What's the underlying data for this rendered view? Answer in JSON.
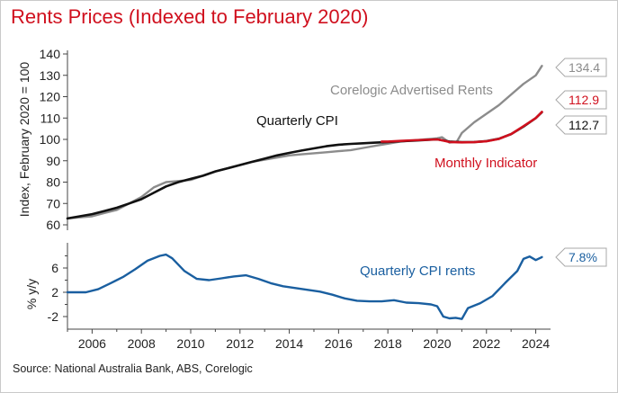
{
  "title": "Rents Prices (Indexed to February 2020)",
  "source": "Source: National Australia Bank, ABS, Corelogic",
  "chart_data": [
    {
      "type": "line",
      "ylabel": "Index, February 2020 = 100",
      "ylim": [
        60,
        140
      ],
      "yticks": [
        "60",
        "70",
        "80",
        "90",
        "100",
        "110",
        "120",
        "130",
        "140"
      ],
      "grid": false,
      "annotations": {
        "corelogic": "Corelogic Advertised Rents",
        "cpi": "Quarterly CPI",
        "monthly": "Monthly Indicator"
      },
      "end_labels": {
        "corelogic": "134.4",
        "monthly": "112.9",
        "cpi": "112.7"
      },
      "series": [
        {
          "key": "corelogic",
          "color": "#8c8c8c",
          "x": [
            2005.0,
            2005.5,
            2006.0,
            2006.5,
            2007.0,
            2007.5,
            2008.0,
            2008.5,
            2009.0,
            2009.5,
            2010.0,
            2010.5,
            2011.0,
            2011.5,
            2012.0,
            2012.5,
            2013.0,
            2013.5,
            2014.0,
            2014.5,
            2015.0,
            2015.5,
            2016.0,
            2016.5,
            2017.0,
            2017.5,
            2018.0,
            2018.5,
            2019.0,
            2019.5,
            2020.0,
            2020.2,
            2020.5,
            2020.8,
            2021.0,
            2021.5,
            2022.0,
            2022.5,
            2023.0,
            2023.5,
            2024.0,
            2024.25
          ],
          "y": [
            63,
            63.5,
            64,
            65.5,
            67,
            70,
            73,
            77.5,
            80,
            80.5,
            81,
            83,
            85,
            86.5,
            88,
            89.5,
            90.5,
            91.5,
            92.5,
            93,
            93.5,
            94,
            94.5,
            95,
            96,
            97,
            98,
            99,
            99.5,
            100,
            100.5,
            101,
            98.5,
            99,
            103,
            108,
            112,
            116,
            121,
            126,
            130,
            134.4
          ]
        },
        {
          "key": "cpi",
          "color": "#111111",
          "x": [
            2005.0,
            2005.5,
            2006.0,
            2006.5,
            2007.0,
            2007.5,
            2008.0,
            2008.5,
            2009.0,
            2009.5,
            2010.0,
            2010.5,
            2011.0,
            2011.5,
            2012.0,
            2012.5,
            2013.0,
            2013.5,
            2014.0,
            2014.5,
            2015.0,
            2015.5,
            2016.0,
            2016.5,
            2017.0,
            2017.5,
            2018.0,
            2018.5,
            2019.0,
            2019.5,
            2020.0,
            2020.5,
            2021.0,
            2021.5,
            2022.0,
            2022.5,
            2023.0,
            2023.5,
            2024.0,
            2024.25
          ],
          "y": [
            63,
            64,
            65,
            66.5,
            68,
            70,
            72,
            75,
            78,
            80,
            81.5,
            83,
            85,
            86.5,
            88,
            89.5,
            91,
            92.5,
            93.7,
            94.8,
            95.8,
            96.8,
            97.5,
            97.9,
            98.2,
            98.5,
            98.8,
            99.1,
            99.4,
            99.7,
            100,
            99,
            98.7,
            98.8,
            99.2,
            100.3,
            102.5,
            106,
            110,
            112.7
          ]
        },
        {
          "key": "monthly",
          "color": "#d0101e",
          "x": [
            2017.75,
            2018.0,
            2018.5,
            2019.0,
            2019.5,
            2020.0,
            2020.2,
            2020.5,
            2021.0,
            2021.5,
            2022.0,
            2022.5,
            2023.0,
            2023.5,
            2024.0,
            2024.25
          ],
          "y": [
            99,
            99,
            99.3,
            99.6,
            99.8,
            100,
            99.6,
            98.8,
            98.6,
            98.7,
            99.1,
            100.2,
            102.5,
            106.2,
            110,
            112.9
          ]
        }
      ]
    },
    {
      "type": "line",
      "ylabel": "% y/y",
      "ylim": [
        -4,
        8.5
      ],
      "yticks": [
        "-2",
        "2",
        "6"
      ],
      "xticks": [
        "2006",
        "2008",
        "2010",
        "2012",
        "2014",
        "2016",
        "2018",
        "2020",
        "2022",
        "2024"
      ],
      "grid": false,
      "annotations": {
        "cpi_rents": "Quarterly CPI rents"
      },
      "end_labels": {
        "cpi_rents": "7.8%"
      },
      "series": [
        {
          "key": "cpi_rents",
          "color": "#1a5fa0",
          "x": [
            2005.0,
            2005.75,
            2006.25,
            2006.75,
            2007.25,
            2007.75,
            2008.25,
            2008.75,
            2009.0,
            2009.25,
            2009.75,
            2010.25,
            2010.75,
            2011.25,
            2011.75,
            2012.25,
            2012.75,
            2013.25,
            2013.75,
            2014.25,
            2014.75,
            2015.25,
            2015.75,
            2016.25,
            2016.75,
            2017.25,
            2017.75,
            2018.25,
            2018.75,
            2019.25,
            2019.75,
            2020.0,
            2020.25,
            2020.5,
            2020.75,
            2021.0,
            2021.25,
            2021.75,
            2022.25,
            2022.75,
            2023.25,
            2023.5,
            2023.75,
            2024.0,
            2024.25
          ],
          "y": [
            2,
            2,
            2.5,
            3.5,
            4.5,
            5.8,
            7.2,
            8,
            8.2,
            7.6,
            5.5,
            4.2,
            4,
            4.3,
            4.6,
            4.8,
            4.2,
            3.5,
            3,
            2.7,
            2.4,
            2.1,
            1.6,
            1,
            0.6,
            0.5,
            0.5,
            0.7,
            0.3,
            0.2,
            0,
            -0.3,
            -2,
            -2.3,
            -2.2,
            -2.4,
            -0.6,
            0.2,
            1.4,
            3.5,
            5.5,
            7.5,
            7.9,
            7.3,
            7.8
          ]
        }
      ]
    }
  ]
}
